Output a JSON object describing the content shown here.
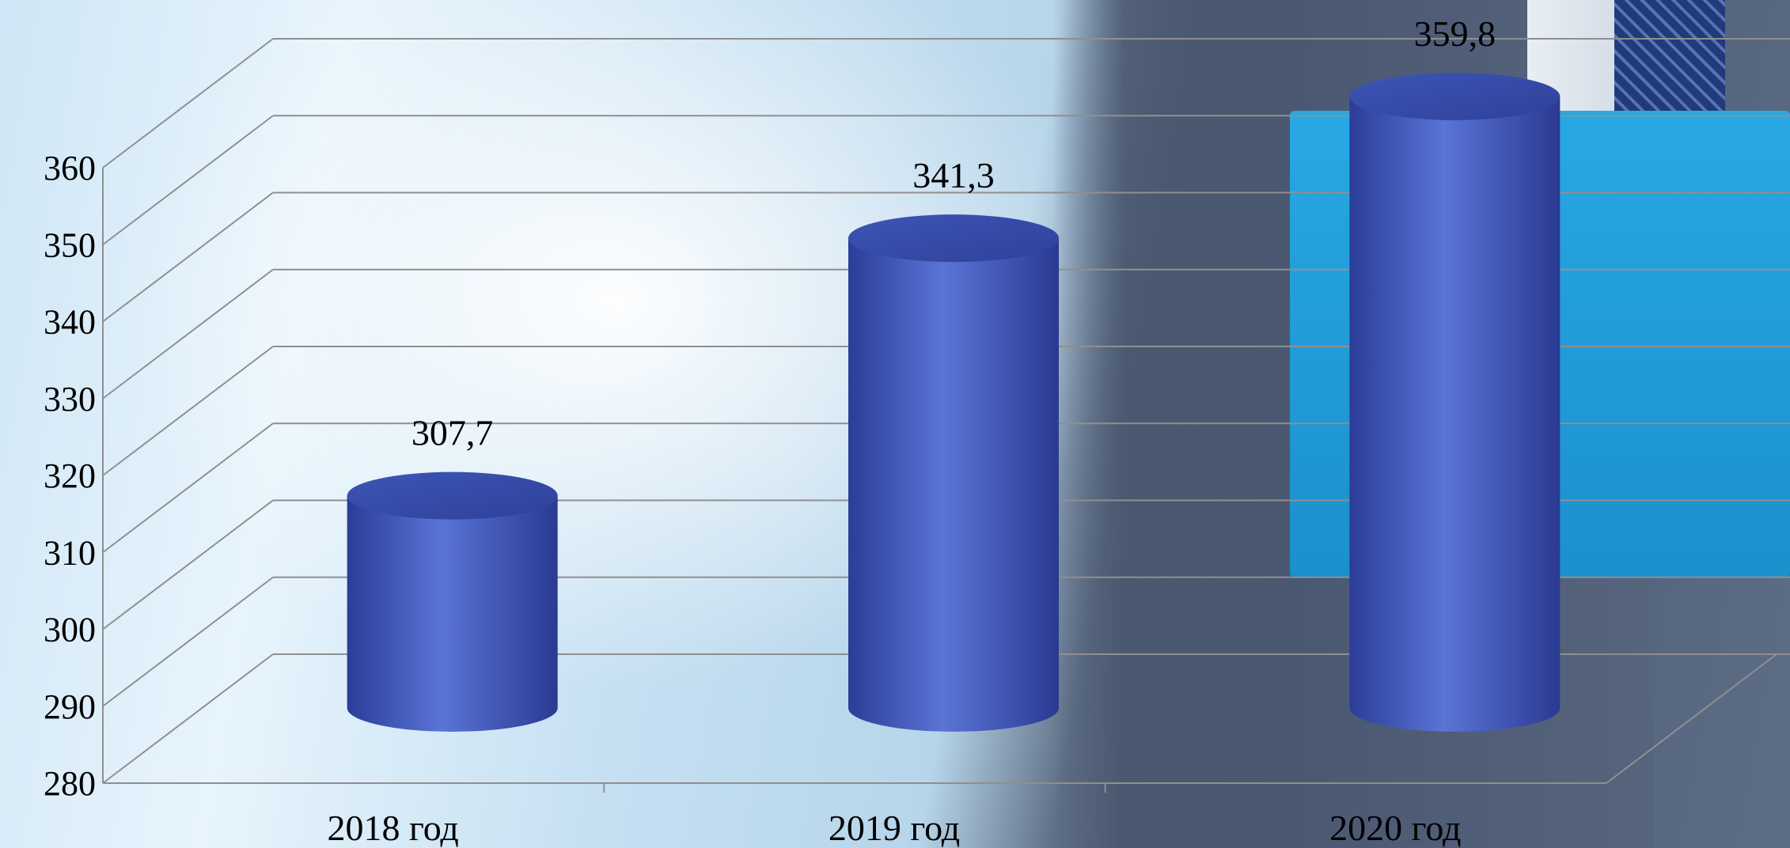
{
  "chart_data": {
    "type": "bar",
    "style": "3d-cylinder",
    "categories": [
      "2018 год",
      "2019 год",
      "2020 год"
    ],
    "values": [
      307.7,
      341.3,
      359.8
    ],
    "data_labels": [
      "307,7",
      "341,3",
      "359,8"
    ],
    "title": "",
    "xlabel": "",
    "ylabel": "",
    "ylim": [
      280,
      360
    ],
    "yticks": [
      "280",
      "290",
      "300",
      "310",
      "320",
      "330",
      "340",
      "350",
      "360"
    ],
    "grid": true,
    "bar_color": "#4a63c8",
    "grid_color": "#8f8f8f"
  }
}
